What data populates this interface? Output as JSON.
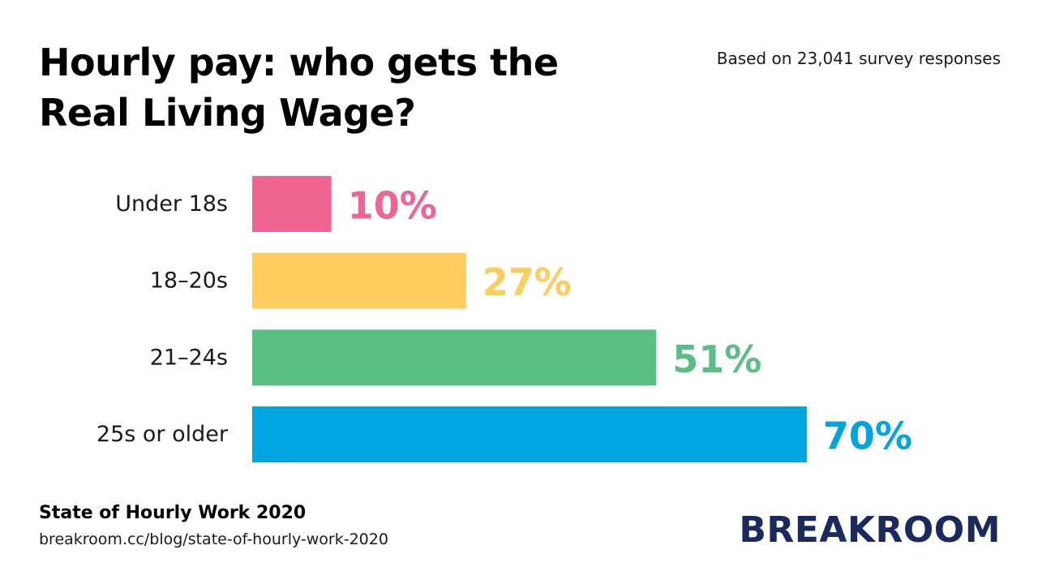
{
  "header": {
    "title": "Hourly pay: who gets the Real Living Wage?",
    "subtitle": "Based on 23,041 survey responses"
  },
  "footer": {
    "source_title": "State of Hourly Work 2020",
    "source_url": "breakroom.cc/blog/state-of-hourly-work-2020",
    "brand": "BREAKROOM"
  },
  "colors": {
    "brand": "#1b2a5e",
    "bars": [
      "#ef6491",
      "#fdcd60",
      "#5bbf84",
      "#00a5e0"
    ]
  },
  "chart_data": {
    "type": "bar",
    "orientation": "horizontal",
    "title": "Hourly pay: who gets the Real Living Wage?",
    "subtitle": "Based on 23,041 survey responses",
    "categories": [
      "Under 18s",
      "18–20s",
      "21–24s",
      "25s or older"
    ],
    "values": [
      10,
      27,
      51,
      70
    ],
    "value_labels": [
      "10%",
      "27%",
      "51%",
      "70%"
    ],
    "unit": "%",
    "xlim": [
      0,
      100
    ],
    "grid": false,
    "legend": "none"
  }
}
